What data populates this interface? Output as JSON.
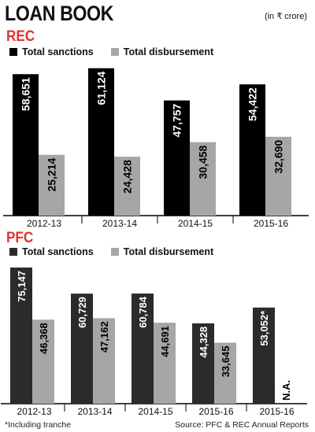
{
  "header": {
    "title": "LOAN BOOK",
    "unit": "(in ₹ crore)"
  },
  "colors": {
    "sanctions_dark": "#000000",
    "sanctions_pfc": "#2b2b2b",
    "disbursement": "#a6a6a6",
    "section_label": "#e3312f"
  },
  "legend": {
    "sanctions": "Total sanctions",
    "disbursement": "Total disbursement"
  },
  "chart_data": [
    {
      "type": "bar",
      "title": "REC",
      "categories": [
        "2012-13",
        "2013-14",
        "2014-15",
        "2015-16"
      ],
      "series": [
        {
          "name": "Total sanctions",
          "values": [
            58651,
            61124,
            47757,
            54422
          ],
          "labels": [
            "58,651",
            "61,124",
            "47,757",
            "54,422"
          ]
        },
        {
          "name": "Total disbursement",
          "values": [
            25214,
            24428,
            30458,
            32690
          ],
          "labels": [
            "25,214",
            "24,428",
            "30,458",
            "32,690"
          ]
        }
      ],
      "ylim": [
        0,
        62000
      ]
    },
    {
      "type": "bar",
      "title": "PFC",
      "categories": [
        "2012-13",
        "2013-14",
        "2014-15",
        "2015-16",
        "2015-16"
      ],
      "series": [
        {
          "name": "Total sanctions",
          "values": [
            75147,
            60729,
            60784,
            44328,
            53052
          ],
          "labels": [
            "75,147",
            "60,729",
            "60,784",
            "44,328",
            "53,052*"
          ]
        },
        {
          "name": "Total disbursement",
          "values": [
            46368,
            47162,
            44691,
            33645,
            null
          ],
          "labels": [
            "46,368",
            "47,162",
            "44,691",
            "33,645",
            "N.A."
          ]
        }
      ],
      "ylim": [
        0,
        76000
      ]
    }
  ],
  "footer": {
    "note": "*Including tranche",
    "source": "Source: PFC & REC Annual Reports"
  }
}
